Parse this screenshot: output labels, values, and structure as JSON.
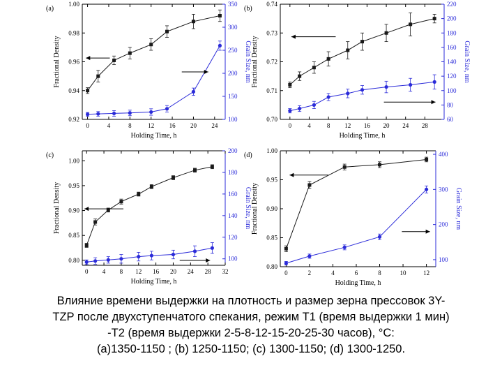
{
  "caption": {
    "line1": "Влияние времени выдержки на плотность и размер зерна прессовок 3Y-",
    "line2": "TZP после двухступенчатого спекания, режим T1 (время выдержки 1 мин)",
    "line3": "-T2 (время выдержки 2-5-8-12-15-20-25-30 часов), °C:",
    "line4": "(a)1350-1150 ; (b) 1250-1150; (c) 1300-1150; (d) 1300-1250."
  },
  "colors": {
    "density": "#1a1a1a",
    "grain": "#2b2bd9"
  },
  "chart_data": [
    {
      "type": "line",
      "panel": "(a)",
      "xlabel": "Holding Time, h",
      "ylabel": "Fractional Density",
      "y2label": "Grain Size, nm",
      "xlim": [
        -1,
        26
      ],
      "ylim": [
        0.92,
        1.0
      ],
      "y2lim": [
        100,
        350
      ],
      "xticks": [
        0,
        4,
        8,
        12,
        16,
        20,
        24
      ],
      "yticks": [
        0.92,
        0.94,
        0.96,
        0.98,
        1.0
      ],
      "y2ticks": [
        100,
        150,
        200,
        250,
        300,
        350
      ],
      "series": [
        {
          "axis": "left",
          "marker": "square",
          "x": [
            0,
            2,
            5,
            8,
            12,
            15,
            20,
            25
          ],
          "y": [
            0.94,
            0.95,
            0.961,
            0.966,
            0.972,
            0.981,
            0.988,
            0.992
          ],
          "err": [
            0.002,
            0.004,
            0.003,
            0.004,
            0.004,
            0.004,
            0.005,
            0.004
          ]
        },
        {
          "axis": "right",
          "marker": "circle",
          "x": [
            0,
            2,
            5,
            8,
            12,
            15,
            20,
            25
          ],
          "y": [
            111,
            112,
            113,
            114,
            116,
            123,
            160,
            260
          ],
          "err": [
            4,
            5,
            6,
            6,
            7,
            7,
            8,
            10
          ]
        }
      ],
      "arrows": [
        {
          "dir": "left",
          "axis": "left",
          "y": 0.9626,
          "x0": 4.2,
          "x1": -0.3
        },
        {
          "dir": "right",
          "axis": "right",
          "y": 203,
          "x0": 17.8,
          "x1": 22.8
        }
      ]
    },
    {
      "type": "line",
      "panel": "(b)",
      "xlabel": "Holding Time, h",
      "ylabel": "Fractional Density",
      "y2label": "Grain Size, nm",
      "xlim": [
        -2,
        32
      ],
      "ylim": [
        0.7,
        0.74
      ],
      "y2lim": [
        60,
        220
      ],
      "xticks": [
        0,
        4,
        8,
        12,
        16,
        20,
        24,
        28
      ],
      "yticks": [
        0.7,
        0.71,
        0.72,
        0.73,
        0.74
      ],
      "y2ticks": [
        60,
        80,
        100,
        120,
        140,
        160,
        180,
        200,
        220
      ],
      "series": [
        {
          "axis": "left",
          "marker": "square",
          "x": [
            0,
            2,
            5,
            8,
            12,
            15,
            20,
            25,
            30
          ],
          "y": [
            0.712,
            0.715,
            0.718,
            0.721,
            0.724,
            0.727,
            0.73,
            0.733,
            0.735
          ],
          "err": [
            0.001,
            0.0015,
            0.002,
            0.0025,
            0.003,
            0.003,
            0.003,
            0.004,
            0.0015
          ]
        },
        {
          "axis": "right",
          "marker": "circle",
          "x": [
            0,
            2,
            5,
            8,
            12,
            15,
            20,
            25,
            30
          ],
          "y": [
            72,
            75,
            80,
            91,
            96,
            101,
            105,
            108,
            112
          ],
          "err": [
            3,
            4,
            5,
            5,
            6,
            6,
            8,
            9,
            10
          ]
        }
      ],
      "arrows": [
        {
          "dir": "left",
          "axis": "left",
          "y": 0.7287,
          "x0": 9.5,
          "x1": 0.3
        },
        {
          "dir": "right",
          "axis": "right",
          "y": 84,
          "x0": 19.5,
          "x1": 30.2
        }
      ]
    },
    {
      "type": "line",
      "panel": "(c)",
      "xlabel": "Holding Time, h",
      "ylabel": "Fractional Density",
      "y2label": "Grain Size, nm",
      "xlim": [
        -1,
        32
      ],
      "ylim": [
        0.79,
        1.02
      ],
      "y2lim": [
        94,
        200
      ],
      "xticks": [
        0,
        4,
        8,
        12,
        16,
        20,
        24,
        28,
        32
      ],
      "yticks": [
        0.8,
        0.85,
        0.9,
        0.95,
        1.0
      ],
      "y2ticks": [
        100,
        120,
        140,
        160,
        180,
        200
      ],
      "series": [
        {
          "axis": "left",
          "marker": "square",
          "x": [
            0,
            2,
            5,
            8,
            12,
            15,
            20,
            25,
            29
          ],
          "y": [
            0.83,
            0.877,
            0.901,
            0.918,
            0.933,
            0.948,
            0.966,
            0.981,
            0.988
          ],
          "err": [
            0.004,
            0.006,
            0.004,
            0.005,
            0.004,
            0.004,
            0.004,
            0.004,
            0.004
          ]
        },
        {
          "axis": "right",
          "marker": "circle",
          "x": [
            0,
            2,
            5,
            8,
            12,
            15,
            20,
            25,
            29
          ],
          "y": [
            97,
            98,
            99,
            100,
            102,
            103,
            104,
            107,
            110
          ],
          "err": [
            2,
            3,
            3,
            4,
            4,
            4,
            4,
            5,
            5
          ]
        }
      ],
      "arrows": [
        {
          "dir": "left",
          "axis": "left",
          "y": 0.9035,
          "x0": 8.5,
          "x1": -0.5
        },
        {
          "dir": "right",
          "axis": "right",
          "y": 98.5,
          "x0": 21.5,
          "x1": 28.5
        }
      ]
    },
    {
      "type": "line",
      "panel": "(d)",
      "xlabel": "Holding Time, h",
      "ylabel": "Fractional Density",
      "y2label": "Grain Size, nm",
      "xlim": [
        -0.5,
        12.8
      ],
      "ylim": [
        0.8,
        1.0
      ],
      "y2lim": [
        80,
        410
      ],
      "xticks": [
        0,
        2,
        4,
        6,
        8,
        10,
        12
      ],
      "yticks": [
        0.8,
        0.85,
        0.9,
        0.95,
        1.0
      ],
      "y2ticks": [
        100,
        200,
        300,
        400
      ],
      "series": [
        {
          "axis": "left",
          "marker": "square",
          "x": [
            0,
            2,
            5,
            8,
            12
          ],
          "y": [
            0.831,
            0.941,
            0.972,
            0.976,
            0.985
          ],
          "err": [
            0.005,
            0.006,
            0.005,
            0.005,
            0.004
          ]
        },
        {
          "axis": "right",
          "marker": "circle",
          "x": [
            0,
            2,
            5,
            8,
            12
          ],
          "y": [
            90,
            110,
            135,
            165,
            300
          ],
          "err": [
            5,
            6,
            7,
            8,
            10
          ]
        }
      ],
      "arrows": [
        {
          "dir": "left",
          "axis": "left",
          "y": 0.9582,
          "x0": 3.6,
          "x1": 0.3
        },
        {
          "dir": "right",
          "axis": "right",
          "y": 180,
          "x0": 9.9,
          "x1": 12.3
        }
      ]
    }
  ]
}
